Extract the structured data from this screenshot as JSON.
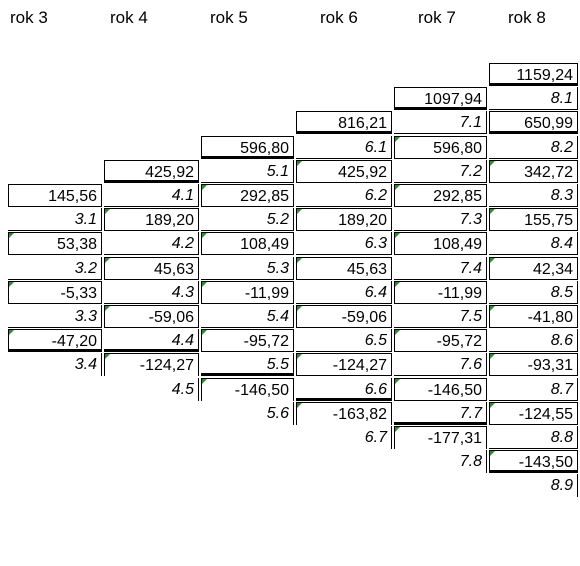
{
  "headers": [
    "rok 3",
    "rok 4",
    "rok 5",
    "rok 6",
    "rok 7",
    "rok 8"
  ],
  "columns": [
    {
      "cells": [
        {
          "t": "v",
          "text": "145,56",
          "b": "thin"
        },
        {
          "t": "l",
          "text": "3.1",
          "b": "thin"
        },
        {
          "t": "v",
          "text": "53,38",
          "b": "thin",
          "mark": true
        },
        {
          "t": "l",
          "text": "3.2",
          "b": "thin"
        },
        {
          "t": "v",
          "text": "-5,33",
          "b": "thin",
          "mark": true
        },
        {
          "t": "l",
          "text": "3.3",
          "b": "thin"
        },
        {
          "t": "v",
          "text": "-47,20",
          "b": "thick",
          "mark": true
        },
        {
          "t": "l",
          "text": "3.4",
          "b": "none"
        }
      ]
    },
    {
      "cells": [
        {
          "t": "v",
          "text": "425,92",
          "b": "thick"
        },
        {
          "t": "l",
          "text": "4.1",
          "b": "thin"
        },
        {
          "t": "v",
          "text": "189,20",
          "b": "thin",
          "mark": true
        },
        {
          "t": "l",
          "text": "4.2",
          "b": "thin"
        },
        {
          "t": "v",
          "text": "45,63",
          "b": "thin",
          "mark": true
        },
        {
          "t": "l",
          "text": "4.3",
          "b": "thin"
        },
        {
          "t": "v",
          "text": "-59,06",
          "b": "thin",
          "mark": true
        },
        {
          "t": "l",
          "text": "4.4",
          "b": "thick"
        },
        {
          "t": "v",
          "text": "-124,27",
          "b": "none",
          "mark": true
        },
        {
          "t": "l",
          "text": "4.5",
          "b": "none"
        }
      ]
    },
    {
      "cells": [
        {
          "t": "v",
          "text": "596,80",
          "b": "thick"
        },
        {
          "t": "l",
          "text": "5.1",
          "b": "thin"
        },
        {
          "t": "v",
          "text": "292,85",
          "b": "thin",
          "mark": true
        },
        {
          "t": "l",
          "text": "5.2",
          "b": "thin"
        },
        {
          "t": "v",
          "text": "108,49",
          "b": "thin",
          "mark": true
        },
        {
          "t": "l",
          "text": "5.3",
          "b": "thin"
        },
        {
          "t": "v",
          "text": "-11,99",
          "b": "thin",
          "mark": true
        },
        {
          "t": "l",
          "text": "5.4",
          "b": "thin"
        },
        {
          "t": "v",
          "text": "-95,72",
          "b": "thin",
          "mark": true
        },
        {
          "t": "l",
          "text": "5.5",
          "b": "thick"
        },
        {
          "t": "v",
          "text": "-146,50",
          "b": "none",
          "mark": true
        },
        {
          "t": "l",
          "text": "5.6",
          "b": "none"
        }
      ]
    },
    {
      "cells": [
        {
          "t": "v",
          "text": "816,21",
          "b": "thick"
        },
        {
          "t": "l",
          "text": "6.1",
          "b": "thin"
        },
        {
          "t": "v",
          "text": "425,92",
          "b": "thin",
          "mark": true
        },
        {
          "t": "l",
          "text": "6.2",
          "b": "thin"
        },
        {
          "t": "v",
          "text": "189,20",
          "b": "thin",
          "mark": true
        },
        {
          "t": "l",
          "text": "6.3",
          "b": "thin"
        },
        {
          "t": "v",
          "text": "45,63",
          "b": "thin",
          "mark": true
        },
        {
          "t": "l",
          "text": "6.4",
          "b": "thin"
        },
        {
          "t": "v",
          "text": "-59,06",
          "b": "thin",
          "mark": true
        },
        {
          "t": "l",
          "text": "6.5",
          "b": "thin"
        },
        {
          "t": "v",
          "text": "-124,27",
          "b": "thin",
          "mark": true
        },
        {
          "t": "l",
          "text": "6.6",
          "b": "thick"
        },
        {
          "t": "v",
          "text": "-163,82",
          "b": "none",
          "mark": true
        },
        {
          "t": "l",
          "text": "6.7",
          "b": "none"
        }
      ]
    },
    {
      "cells": [
        {
          "t": "v",
          "text": "1097,94",
          "b": "thick"
        },
        {
          "t": "l",
          "text": "7.1",
          "b": "thin"
        },
        {
          "t": "v",
          "text": "596,80",
          "b": "thin",
          "mark": true
        },
        {
          "t": "l",
          "text": "7.2",
          "b": "thin"
        },
        {
          "t": "v",
          "text": "292,85",
          "b": "thin",
          "mark": true
        },
        {
          "t": "l",
          "text": "7.3",
          "b": "thin"
        },
        {
          "t": "v",
          "text": "108,49",
          "b": "thin",
          "mark": true
        },
        {
          "t": "l",
          "text": "7.4",
          "b": "thin"
        },
        {
          "t": "v",
          "text": "-11,99",
          "b": "thin",
          "mark": true
        },
        {
          "t": "l",
          "text": "7.5",
          "b": "thin"
        },
        {
          "t": "v",
          "text": "-95,72",
          "b": "thin",
          "mark": true
        },
        {
          "t": "l",
          "text": "7.6",
          "b": "thin"
        },
        {
          "t": "v",
          "text": "-146,50",
          "b": "thin",
          "mark": true
        },
        {
          "t": "l",
          "text": "7.7",
          "b": "thick"
        },
        {
          "t": "v",
          "text": "-177,31",
          "b": "none",
          "mark": true
        },
        {
          "t": "l",
          "text": "7.8",
          "b": "none"
        }
      ]
    },
    {
      "cells": [
        {
          "t": "v",
          "text": "1159,24",
          "b": "thick"
        },
        {
          "t": "l",
          "text": "8.1",
          "b": "thin"
        },
        {
          "t": "v",
          "text": "650,99",
          "b": "thick"
        },
        {
          "t": "l",
          "text": "8.2",
          "b": "thin"
        },
        {
          "t": "v",
          "text": "342,72",
          "b": "thin",
          "mark": true
        },
        {
          "t": "l",
          "text": "8.3",
          "b": "thin"
        },
        {
          "t": "v",
          "text": "155,75",
          "b": "thin",
          "mark": true
        },
        {
          "t": "l",
          "text": "8.4",
          "b": "thin"
        },
        {
          "t": "v",
          "text": "42,34",
          "b": "thin",
          "mark": true
        },
        {
          "t": "l",
          "text": "8.5",
          "b": "thin"
        },
        {
          "t": "v",
          "text": "-41,80",
          "b": "thin",
          "mark": true
        },
        {
          "t": "l",
          "text": "8.6",
          "b": "thin"
        },
        {
          "t": "v",
          "text": "-93,31",
          "b": "thin",
          "mark": true
        },
        {
          "t": "l",
          "text": "8.7",
          "b": "thin"
        },
        {
          "t": "v",
          "text": "-124,55",
          "b": "thin",
          "mark": true
        },
        {
          "t": "l",
          "text": "8.8",
          "b": "thin"
        },
        {
          "t": "v",
          "text": "-143,50",
          "b": "thick",
          "mark": true
        },
        {
          "t": "l",
          "text": "8.9",
          "b": "none"
        }
      ]
    }
  ]
}
